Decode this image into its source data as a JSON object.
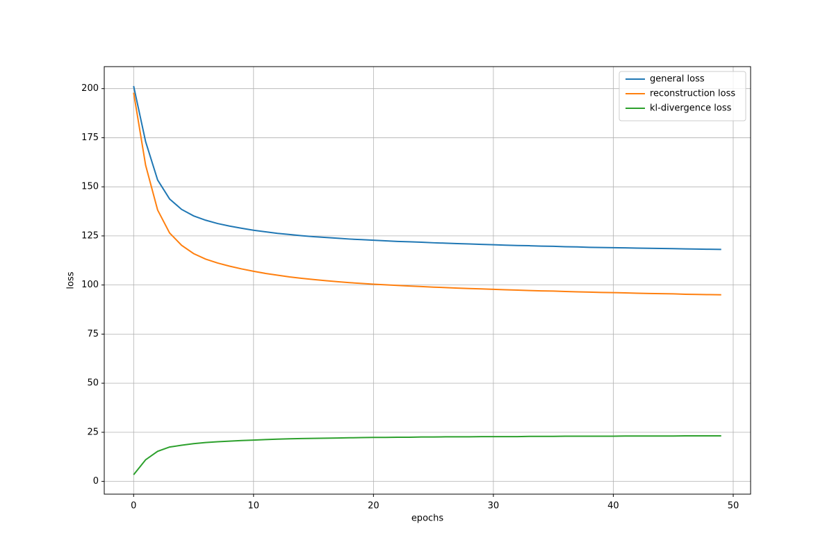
{
  "chart_data": {
    "type": "line",
    "xlabel": "epochs",
    "ylabel": "loss",
    "x": [
      0,
      1,
      2,
      3,
      4,
      5,
      6,
      7,
      8,
      9,
      10,
      11,
      12,
      13,
      14,
      15,
      16,
      17,
      18,
      19,
      20,
      21,
      22,
      23,
      24,
      25,
      26,
      27,
      28,
      29,
      30,
      31,
      32,
      33,
      34,
      35,
      36,
      37,
      38,
      39,
      40,
      41,
      42,
      43,
      44,
      45,
      46,
      47,
      48,
      49
    ],
    "series": [
      {
        "name": "general loss",
        "color": "#1f77b4",
        "values": [
          201.3,
          173,
          153.5,
          143.8,
          138.5,
          135.2,
          133,
          131.3,
          130,
          128.9,
          127.9,
          127.1,
          126.3,
          125.7,
          125.1,
          124.6,
          124.2,
          123.8,
          123.4,
          123.1,
          122.8,
          122.5,
          122.2,
          122,
          121.8,
          121.5,
          121.3,
          121.1,
          120.9,
          120.7,
          120.5,
          120.3,
          120.1,
          120,
          119.8,
          119.7,
          119.5,
          119.4,
          119.2,
          119.1,
          119,
          118.9,
          118.8,
          118.7,
          118.6,
          118.5,
          118.4,
          118.3,
          118.2,
          118.1
        ]
      },
      {
        "name": "reconstruction loss",
        "color": "#ff7f0e",
        "values": [
          197.9,
          161,
          138.2,
          126.5,
          120.2,
          116,
          113.2,
          111.2,
          109.6,
          108.2,
          107,
          105.9,
          105,
          104.1,
          103.4,
          102.8,
          102.2,
          101.7,
          101.2,
          100.8,
          100.4,
          100.1,
          99.8,
          99.5,
          99.2,
          98.9,
          98.7,
          98.4,
          98.2,
          98,
          97.8,
          97.6,
          97.4,
          97.2,
          97,
          96.9,
          96.7,
          96.5,
          96.4,
          96.2,
          96.1,
          96,
          95.8,
          95.7,
          95.6,
          95.5,
          95.3,
          95.2,
          95.1,
          95
        ]
      },
      {
        "name": "kl-divergence loss",
        "color": "#2ca02c",
        "values": [
          3.4,
          11,
          15.3,
          17.5,
          18.4,
          19.2,
          19.8,
          20.2,
          20.5,
          20.8,
          21,
          21.3,
          21.5,
          21.7,
          21.8,
          21.9,
          22,
          22.1,
          22.2,
          22.3,
          22.4,
          22.4,
          22.5,
          22.5,
          22.6,
          22.6,
          22.7,
          22.7,
          22.7,
          22.8,
          22.8,
          22.8,
          22.8,
          22.9,
          22.9,
          22.9,
          23,
          23,
          23,
          23,
          23,
          23.1,
          23.1,
          23.1,
          23.1,
          23.1,
          23.2,
          23.2,
          23.2,
          23.2
        ]
      }
    ],
    "xlim": [
      -2.45,
      51.45
    ],
    "xticks": [
      0,
      10,
      20,
      30,
      40,
      50
    ],
    "ylim": [
      -6.5,
      211.2
    ],
    "yticks": [
      0,
      25,
      50,
      75,
      100,
      125,
      150,
      175,
      200
    ],
    "grid": true,
    "legend": "upper right"
  }
}
